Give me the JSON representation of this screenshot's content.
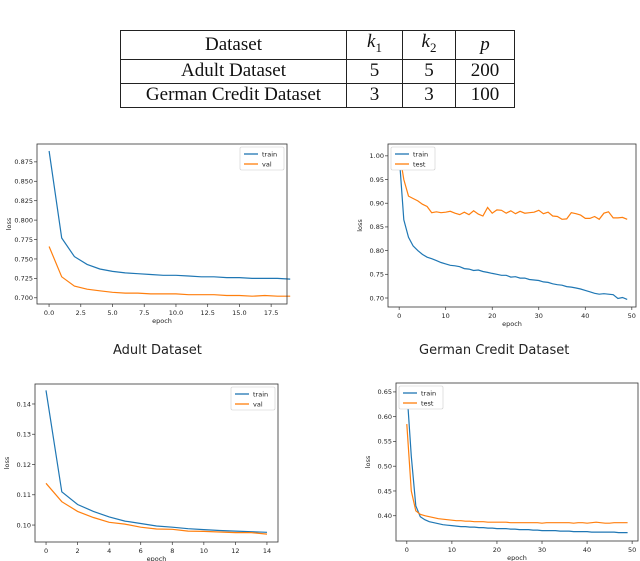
{
  "table": {
    "headers": [
      "Dataset",
      "k1",
      "k2",
      "p"
    ],
    "rows": [
      [
        "Adult Dataset",
        "5",
        "5",
        "200"
      ],
      [
        "German Credit Dataset",
        "3",
        "3",
        "100"
      ]
    ]
  },
  "captions": {
    "adult": "Adult Dataset",
    "german": "German Credit Dataset"
  },
  "chart_data": [
    {
      "type": "line",
      "xlabel": "epoch",
      "ylabel": "loss",
      "xlim": [
        -0.95,
        18.75
      ],
      "ylim": [
        0.692,
        0.898
      ],
      "xticks": [
        0,
        2.5,
        5,
        7.5,
        10,
        12.5,
        15,
        17.5
      ],
      "xtick_labels": [
        "0.0",
        "2.5",
        "5.0",
        "7.5",
        "10.0",
        "12.5",
        "15.0",
        "17.5"
      ],
      "yticks": [
        0.7,
        0.725,
        0.75,
        0.775,
        0.8,
        0.825,
        0.85,
        0.875
      ],
      "ytick_labels": [
        "0.700",
        "0.725",
        "0.750",
        "0.775",
        "0.800",
        "0.825",
        "0.850",
        "0.875"
      ],
      "legend": "top-right",
      "grid": false,
      "series": [
        {
          "name": "train",
          "color": "#1f77b4",
          "values": [
            0.889,
            0.777,
            0.753,
            0.743,
            0.737,
            0.734,
            0.732,
            0.731,
            0.73,
            0.729,
            0.729,
            0.728,
            0.727,
            0.727,
            0.726,
            0.726,
            0.725,
            0.725,
            0.725,
            0.724
          ]
        },
        {
          "name": "val",
          "color": "#ff7f0e",
          "values": [
            0.766,
            0.727,
            0.715,
            0.711,
            0.709,
            0.707,
            0.706,
            0.706,
            0.705,
            0.705,
            0.705,
            0.704,
            0.704,
            0.704,
            0.703,
            0.703,
            0.702,
            0.703,
            0.702,
            0.702
          ]
        }
      ]
    },
    {
      "type": "line",
      "xlabel": "epoch",
      "ylabel": "loss",
      "xlim": [
        -2.4,
        50.9
      ],
      "ylim": [
        0.681,
        1.025
      ],
      "xticks": [
        0,
        10,
        20,
        30,
        40,
        50
      ],
      "xtick_labels": [
        "0",
        "10",
        "20",
        "30",
        "40",
        "50"
      ],
      "yticks": [
        0.7,
        0.75,
        0.8,
        0.85,
        0.9,
        0.95,
        1.0
      ],
      "ytick_labels": [
        "0.70",
        "0.75",
        "0.80",
        "0.85",
        "0.90",
        "0.95",
        "1.00"
      ],
      "legend": "top-left",
      "grid": false,
      "series": [
        {
          "name": "train",
          "color": "#1f77b4",
          "values": [
            1.0,
            0.865,
            0.828,
            0.81,
            0.8,
            0.792,
            0.786,
            0.783,
            0.779,
            0.775,
            0.772,
            0.769,
            0.768,
            0.766,
            0.762,
            0.761,
            0.758,
            0.759,
            0.756,
            0.754,
            0.752,
            0.75,
            0.748,
            0.748,
            0.744,
            0.745,
            0.742,
            0.742,
            0.739,
            0.738,
            0.737,
            0.734,
            0.733,
            0.73,
            0.728,
            0.727,
            0.724,
            0.723,
            0.721,
            0.719,
            0.716,
            0.713,
            0.71,
            0.708,
            0.709,
            0.708,
            0.707,
            0.699,
            0.701,
            0.697
          ]
        },
        {
          "name": "test",
          "color": "#ff7f0e",
          "values": [
            1.01,
            0.95,
            0.915,
            0.91,
            0.905,
            0.898,
            0.893,
            0.88,
            0.882,
            0.88,
            0.881,
            0.883,
            0.879,
            0.876,
            0.881,
            0.876,
            0.884,
            0.877,
            0.873,
            0.891,
            0.879,
            0.886,
            0.885,
            0.879,
            0.884,
            0.878,
            0.883,
            0.879,
            0.88,
            0.881,
            0.885,
            0.878,
            0.881,
            0.873,
            0.872,
            0.866,
            0.867,
            0.88,
            0.878,
            0.875,
            0.868,
            0.868,
            0.872,
            0.866,
            0.879,
            0.882,
            0.869,
            0.869,
            0.87,
            0.866
          ]
        }
      ]
    },
    {
      "type": "line",
      "xlabel": "epoch",
      "ylabel": "loss",
      "xlim": [
        -0.7,
        14.7
      ],
      "ylim": [
        0.0944,
        0.1466
      ],
      "xticks": [
        0,
        2,
        4,
        6,
        8,
        10,
        12,
        14
      ],
      "xtick_labels": [
        "0",
        "2",
        "4",
        "6",
        "8",
        "10",
        "12",
        "14"
      ],
      "yticks": [
        0.1,
        0.11,
        0.12,
        0.13,
        0.14
      ],
      "ytick_labels": [
        "0.10",
        "0.11",
        "0.12",
        "0.13",
        "0.14"
      ],
      "legend": "top-right",
      "grid": false,
      "series": [
        {
          "name": "train",
          "color": "#1f77b4",
          "values": [
            0.1445,
            0.111,
            0.1068,
            0.1045,
            0.1027,
            0.1013,
            0.1005,
            0.0997,
            0.0993,
            0.0988,
            0.0985,
            0.0982,
            0.098,
            0.0978,
            0.0976
          ]
        },
        {
          "name": "val",
          "color": "#ff7f0e",
          "values": [
            0.1138,
            0.1077,
            0.1045,
            0.1025,
            0.1009,
            0.1003,
            0.0993,
            0.0987,
            0.0986,
            0.098,
            0.0979,
            0.0977,
            0.0975,
            0.0975,
            0.097
          ]
        }
      ]
    },
    {
      "type": "line",
      "xlabel": "epoch",
      "ylabel": "loss",
      "xlim": [
        -2.4,
        51.3
      ],
      "ylim": [
        0.349,
        0.668
      ],
      "xticks": [
        0,
        10,
        20,
        30,
        40,
        50
      ],
      "xtick_labels": [
        "0",
        "10",
        "20",
        "30",
        "40",
        "50"
      ],
      "yticks": [
        0.4,
        0.45,
        0.5,
        0.55,
        0.6,
        0.65
      ],
      "ytick_labels": [
        "0.40",
        "0.45",
        "0.50",
        "0.55",
        "0.60",
        "0.65"
      ],
      "legend": "top-left",
      "grid": false,
      "series": [
        {
          "name": "train",
          "color": "#1f77b4",
          "values": [
            0.655,
            0.52,
            0.42,
            0.398,
            0.392,
            0.388,
            0.386,
            0.384,
            0.382,
            0.381,
            0.38,
            0.379,
            0.378,
            0.378,
            0.377,
            0.377,
            0.376,
            0.376,
            0.375,
            0.375,
            0.374,
            0.374,
            0.374,
            0.373,
            0.373,
            0.372,
            0.372,
            0.372,
            0.371,
            0.371,
            0.37,
            0.37,
            0.37,
            0.37,
            0.369,
            0.369,
            0.369,
            0.368,
            0.368,
            0.368,
            0.368,
            0.367,
            0.367,
            0.367,
            0.367,
            0.367,
            0.367,
            0.366,
            0.366,
            0.366
          ]
        },
        {
          "name": "test",
          "color": "#ff7f0e",
          "values": [
            0.585,
            0.45,
            0.41,
            0.403,
            0.4,
            0.398,
            0.396,
            0.394,
            0.393,
            0.392,
            0.391,
            0.39,
            0.39,
            0.389,
            0.389,
            0.388,
            0.388,
            0.388,
            0.387,
            0.387,
            0.387,
            0.387,
            0.387,
            0.386,
            0.386,
            0.386,
            0.386,
            0.386,
            0.386,
            0.386,
            0.385,
            0.386,
            0.386,
            0.386,
            0.386,
            0.386,
            0.386,
            0.385,
            0.386,
            0.386,
            0.385,
            0.386,
            0.387,
            0.386,
            0.385,
            0.385,
            0.386,
            0.386,
            0.386,
            0.386
          ]
        }
      ]
    }
  ]
}
